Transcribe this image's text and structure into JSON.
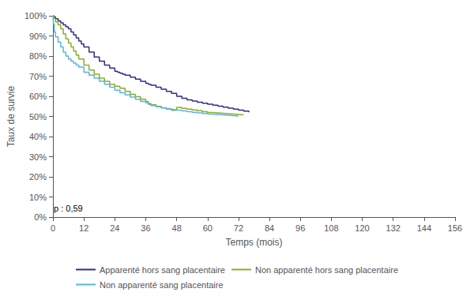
{
  "chart_data": {
    "type": "step",
    "xlabel": "Temps (mois)",
    "ylabel": "Taux de survie",
    "xlim": [
      0,
      156
    ],
    "ylim": [
      0,
      1.0
    ],
    "xticks": [
      0,
      12,
      24,
      36,
      48,
      60,
      72,
      84,
      96,
      108,
      120,
      132,
      144,
      156
    ],
    "yticks": [
      {
        "value": 0.0,
        "label": "0%"
      },
      {
        "value": 0.1,
        "label": "10%"
      },
      {
        "value": 0.2,
        "label": "20%"
      },
      {
        "value": 0.3,
        "label": "30%"
      },
      {
        "value": 0.4,
        "label": "40%"
      },
      {
        "value": 0.5,
        "label": "50%"
      },
      {
        "value": 0.6,
        "label": "60%"
      },
      {
        "value": 0.7,
        "label": "70%"
      },
      {
        "value": 0.8,
        "label": "80%"
      },
      {
        "value": 0.9,
        "label": "90%"
      },
      {
        "value": 1.0,
        "label": "100%"
      }
    ],
    "annotation": "p : 0,59",
    "grid": false,
    "legend": "bottom",
    "series": [
      {
        "name": "Apparenté hors sang placentaire",
        "color": "#2e2e8b",
        "x": [
          0,
          0.3,
          1,
          2,
          3,
          4,
          5,
          6,
          7,
          8,
          9,
          10,
          11,
          12,
          14,
          16,
          18,
          20,
          22,
          24,
          25,
          26,
          27,
          28,
          30,
          32,
          34,
          36,
          37,
          38,
          40,
          42,
          44,
          46,
          48,
          50,
          52,
          54,
          56,
          58,
          60,
          62,
          64,
          66,
          68,
          70,
          72,
          74,
          76
        ],
        "values": [
          1.0,
          0.995,
          0.985,
          0.975,
          0.965,
          0.955,
          0.945,
          0.935,
          0.92,
          0.905,
          0.89,
          0.875,
          0.86,
          0.845,
          0.82,
          0.795,
          0.775,
          0.755,
          0.74,
          0.725,
          0.72,
          0.715,
          0.71,
          0.705,
          0.695,
          0.685,
          0.675,
          0.665,
          0.66,
          0.655,
          0.645,
          0.635,
          0.625,
          0.615,
          0.6,
          0.59,
          0.582,
          0.576,
          0.571,
          0.566,
          0.561,
          0.556,
          0.551,
          0.546,
          0.541,
          0.536,
          0.531,
          0.526,
          0.521
        ]
      },
      {
        "name": "Non apparenté hors sang placentaire",
        "color": "#8aad2a",
        "x": [
          0,
          0.5,
          1,
          2,
          3,
          4,
          5,
          6,
          7,
          8,
          9,
          10,
          12,
          14,
          16,
          18,
          20,
          22,
          24,
          26,
          28,
          30,
          32,
          34,
          36,
          37,
          38,
          40,
          42,
          44,
          46,
          48,
          50,
          52,
          54,
          56,
          58,
          60,
          62,
          64,
          66,
          68,
          70,
          72,
          74
        ],
        "values": [
          1.0,
          0.985,
          0.97,
          0.955,
          0.935,
          0.91,
          0.885,
          0.865,
          0.845,
          0.825,
          0.805,
          0.785,
          0.755,
          0.73,
          0.71,
          0.69,
          0.675,
          0.66,
          0.65,
          0.64,
          0.625,
          0.61,
          0.598,
          0.585,
          0.575,
          0.565,
          0.558,
          0.55,
          0.543,
          0.536,
          0.53,
          0.545,
          0.54,
          0.536,
          0.532,
          0.528,
          0.524,
          0.52,
          0.518,
          0.516,
          0.514,
          0.512,
          0.51,
          0.508,
          0.506
        ]
      },
      {
        "name": "Non apparenté sang placentaire",
        "color": "#5ab4e0",
        "x": [
          0,
          0.2,
          0.5,
          1,
          2,
          3,
          4,
          5,
          6,
          7,
          8,
          9,
          10,
          12,
          14,
          16,
          18,
          20,
          22,
          24,
          26,
          28,
          30,
          32,
          34,
          36,
          37,
          38,
          40,
          42,
          44,
          46,
          47,
          48,
          50,
          52,
          54,
          56,
          58,
          60,
          62,
          64,
          66,
          68,
          70,
          72
        ],
        "values": [
          1.0,
          0.96,
          0.92,
          0.895,
          0.87,
          0.845,
          0.82,
          0.8,
          0.785,
          0.775,
          0.765,
          0.755,
          0.745,
          0.72,
          0.705,
          0.69,
          0.675,
          0.66,
          0.645,
          0.63,
          0.618,
          0.607,
          0.596,
          0.585,
          0.575,
          0.568,
          0.56,
          0.554,
          0.548,
          0.542,
          0.538,
          0.534,
          0.532,
          0.53,
          0.527,
          0.524,
          0.521,
          0.518,
          0.515,
          0.512,
          0.51,
          0.508,
          0.506,
          0.504,
          0.502,
          0.5
        ]
      }
    ]
  }
}
